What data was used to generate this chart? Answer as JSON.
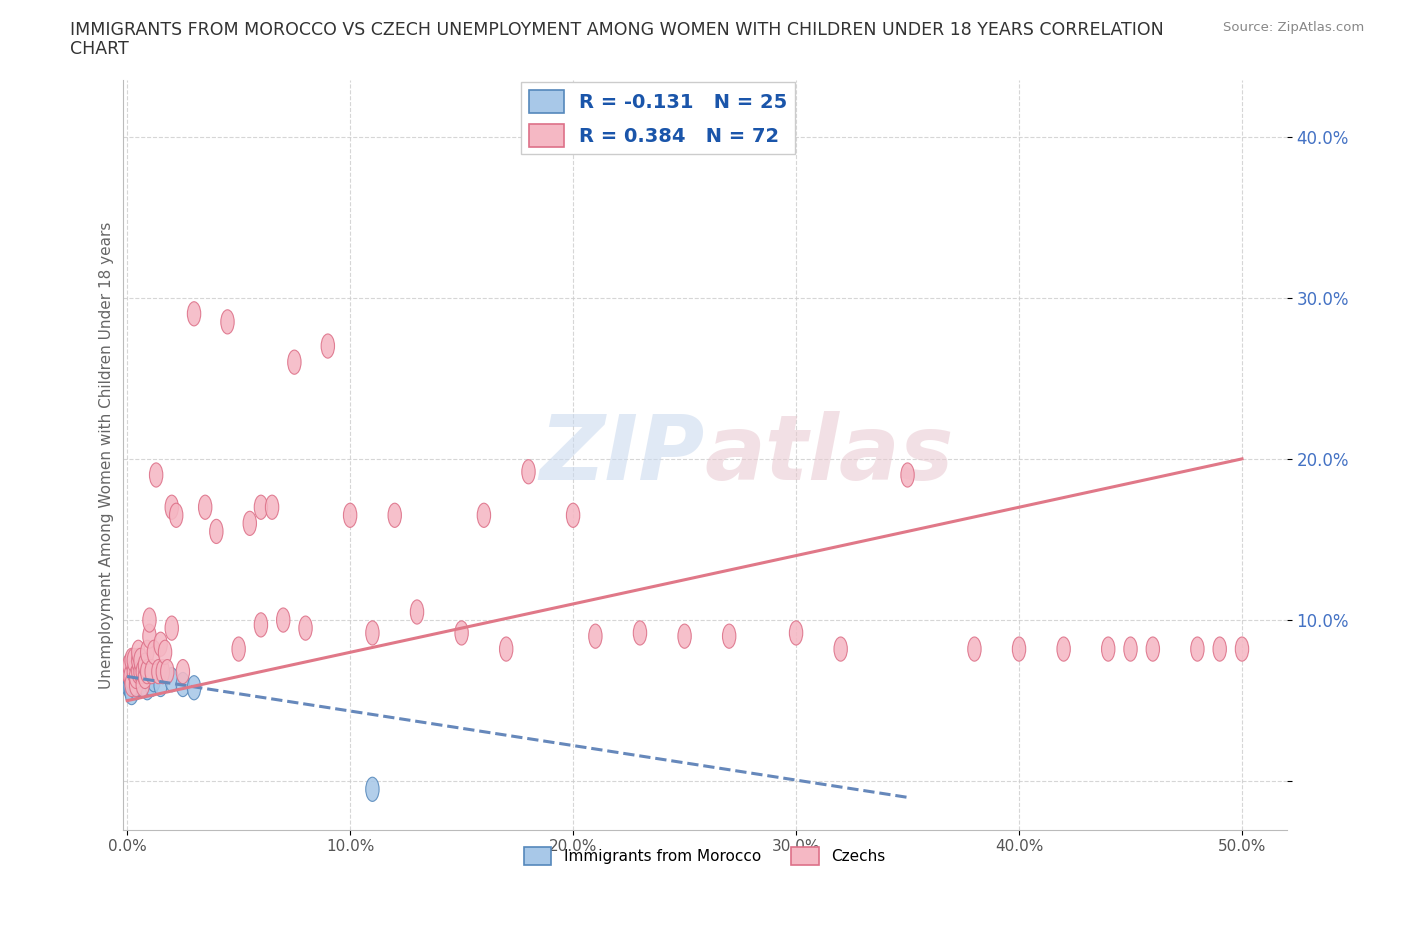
{
  "title_line1": "IMMIGRANTS FROM MOROCCO VS CZECH UNEMPLOYMENT AMONG WOMEN WITH CHILDREN UNDER 18 YEARS CORRELATION",
  "title_line2": "CHART",
  "source": "Source: ZipAtlas.com",
  "ylabel": "Unemployment Among Women with Children Under 18 years",
  "xlim": [
    -0.002,
    0.52
  ],
  "ylim": [
    -0.03,
    0.435
  ],
  "xticks": [
    0.0,
    0.1,
    0.2,
    0.3,
    0.4,
    0.5
  ],
  "xticklabels": [
    "0.0%",
    "10.0%",
    "20.0%",
    "30.0%",
    "40.0%",
    "50.0%"
  ],
  "yticks": [
    0.0,
    0.1,
    0.2,
    0.3,
    0.4
  ],
  "yticklabels": [
    "",
    "10.0%",
    "20.0%",
    "30.0%",
    "40.0%"
  ],
  "grid_color": "#cccccc",
  "bg": "#ffffff",
  "morocco_face": "#a8c8e8",
  "morocco_edge": "#5588bb",
  "czech_face": "#f5b8c4",
  "czech_edge": "#dd7088",
  "morocco_R": -0.131,
  "morocco_N": 25,
  "czech_R": 0.384,
  "czech_N": 72,
  "morocco_line": "#6688bb",
  "czech_line": "#e07888",
  "morocco_x": [
    0.0005,
    0.001,
    0.0015,
    0.002,
    0.0025,
    0.003,
    0.003,
    0.004,
    0.004,
    0.005,
    0.005,
    0.006,
    0.006,
    0.007,
    0.007,
    0.008,
    0.009,
    0.01,
    0.011,
    0.012,
    0.015,
    0.02,
    0.025,
    0.03,
    0.11
  ],
  "morocco_y": [
    0.06,
    0.065,
    0.058,
    0.055,
    0.063,
    0.06,
    0.07,
    0.063,
    0.058,
    0.065,
    0.06,
    0.063,
    0.06,
    0.065,
    0.06,
    0.063,
    0.058,
    0.065,
    0.06,
    0.063,
    0.06,
    0.063,
    0.06,
    0.058,
    -0.005
  ],
  "czech_x": [
    0.0005,
    0.001,
    0.0015,
    0.002,
    0.002,
    0.003,
    0.003,
    0.004,
    0.004,
    0.005,
    0.005,
    0.005,
    0.006,
    0.006,
    0.007,
    0.007,
    0.008,
    0.008,
    0.009,
    0.009,
    0.01,
    0.01,
    0.011,
    0.012,
    0.013,
    0.014,
    0.015,
    0.016,
    0.017,
    0.018,
    0.02,
    0.02,
    0.022,
    0.025,
    0.03,
    0.035,
    0.04,
    0.045,
    0.05,
    0.055,
    0.06,
    0.06,
    0.065,
    0.07,
    0.075,
    0.08,
    0.09,
    0.1,
    0.11,
    0.12,
    0.13,
    0.15,
    0.16,
    0.17,
    0.18,
    0.2,
    0.21,
    0.23,
    0.25,
    0.27,
    0.3,
    0.32,
    0.35,
    0.38,
    0.4,
    0.42,
    0.44,
    0.45,
    0.46,
    0.48,
    0.49,
    0.5
  ],
  "czech_y": [
    0.068,
    0.072,
    0.065,
    0.075,
    0.06,
    0.068,
    0.075,
    0.06,
    0.065,
    0.068,
    0.075,
    0.08,
    0.068,
    0.075,
    0.06,
    0.068,
    0.065,
    0.072,
    0.068,
    0.08,
    0.09,
    0.1,
    0.068,
    0.08,
    0.19,
    0.068,
    0.085,
    0.068,
    0.08,
    0.068,
    0.17,
    0.095,
    0.165,
    0.068,
    0.29,
    0.17,
    0.155,
    0.285,
    0.082,
    0.16,
    0.17,
    0.097,
    0.17,
    0.1,
    0.26,
    0.095,
    0.27,
    0.165,
    0.092,
    0.165,
    0.105,
    0.092,
    0.165,
    0.082,
    0.192,
    0.165,
    0.09,
    0.092,
    0.09,
    0.09,
    0.092,
    0.082,
    0.19,
    0.082,
    0.082,
    0.082,
    0.082,
    0.082,
    0.082,
    0.082,
    0.082,
    0.082
  ],
  "czech_trend_x0": 0.0,
  "czech_trend_y0": 0.05,
  "czech_trend_x1": 0.5,
  "czech_trend_y1": 0.2,
  "morocco_trend_x0": 0.0,
  "morocco_trend_y0": 0.065,
  "morocco_trend_x1": 0.35,
  "morocco_trend_y1": -0.01
}
